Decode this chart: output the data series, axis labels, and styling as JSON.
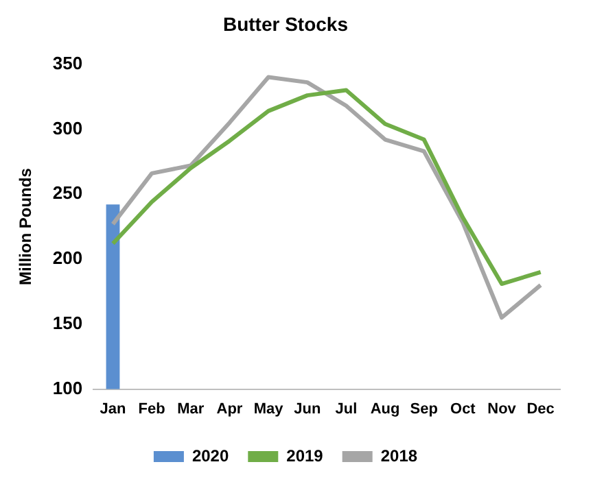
{
  "chart_data": {
    "type": "line",
    "title": "Butter Stocks",
    "ylabel": "Million Pounds",
    "categories": [
      "Jan",
      "Feb",
      "Mar",
      "Apr",
      "May",
      "Jun",
      "Jul",
      "Aug",
      "Sep",
      "Oct",
      "Nov",
      "Dec"
    ],
    "series": [
      {
        "name": "2020",
        "type": "bar",
        "color": "#5b8fd0",
        "values": [
          242,
          null,
          null,
          null,
          null,
          null,
          null,
          null,
          null,
          null,
          null,
          null
        ]
      },
      {
        "name": "2019",
        "color": "#70ad47",
        "values": [
          212,
          244,
          270,
          291,
          314,
          326,
          330,
          304,
          292,
          232,
          181,
          190
        ]
      },
      {
        "name": "2018",
        "color": "#a6a6a6",
        "values": [
          227,
          266,
          272,
          305,
          340,
          336,
          318,
          292,
          283,
          228,
          155,
          180
        ]
      }
    ],
    "ylim": [
      100,
      350
    ],
    "yticks": [
      100,
      150,
      200,
      250,
      300,
      350
    ],
    "grid": false,
    "legend": "bottom",
    "marker": "none"
  }
}
